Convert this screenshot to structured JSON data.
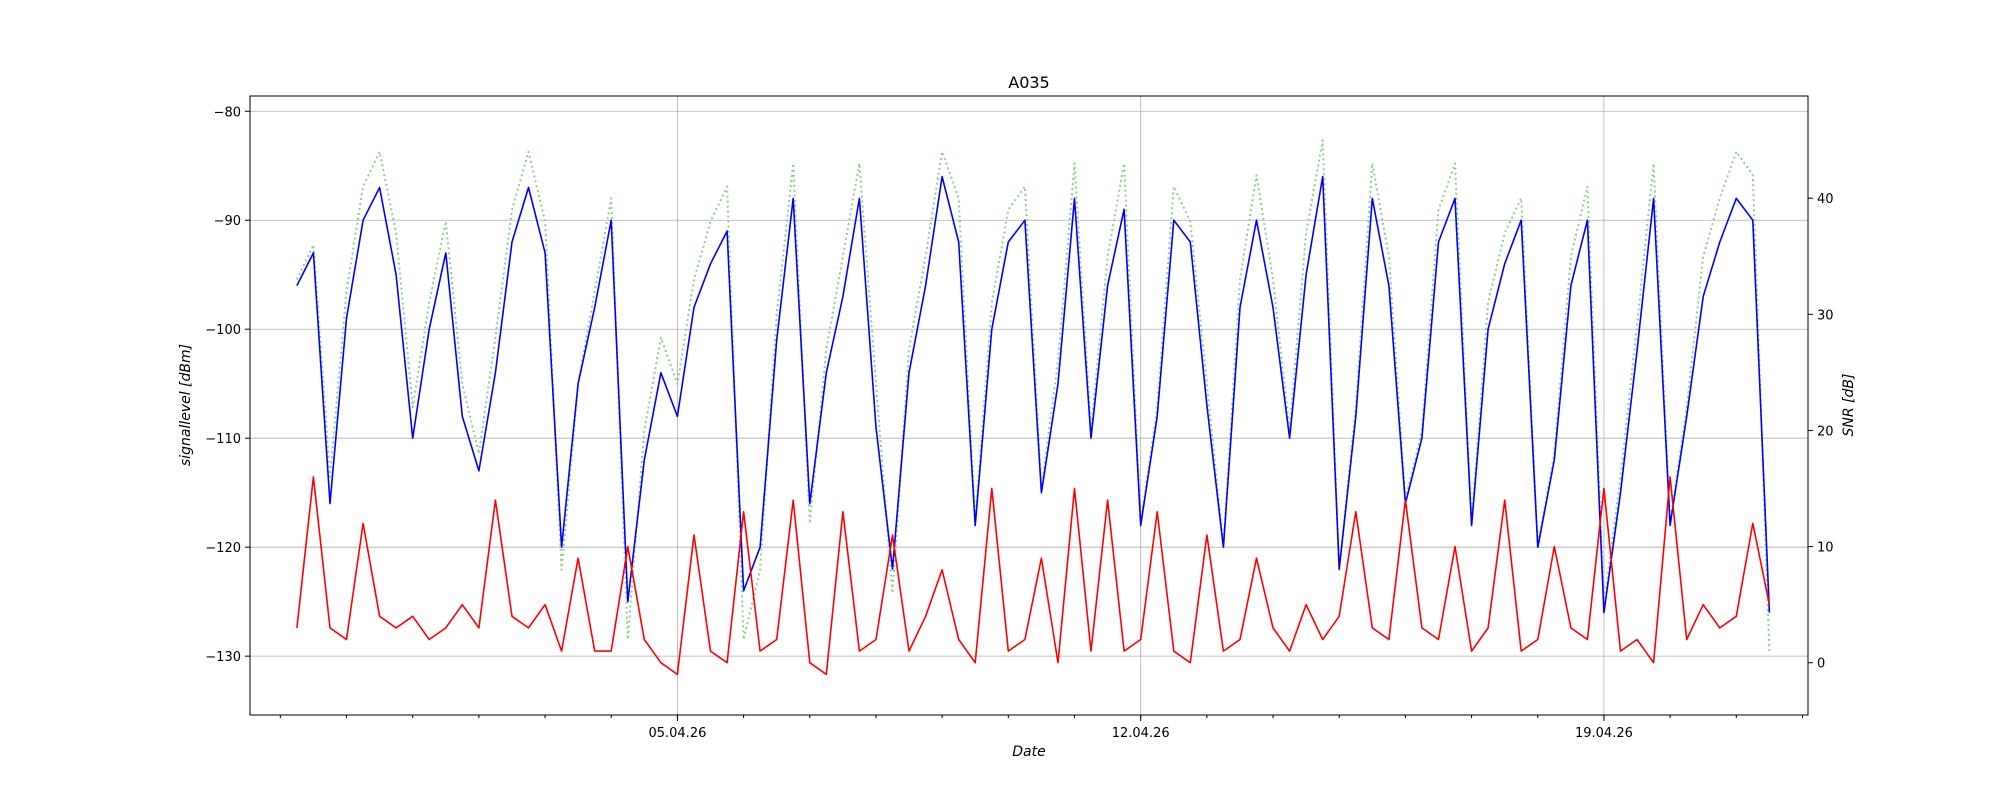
{
  "chart_data": {
    "type": "line",
    "title": "A035",
    "xlabel": "Date",
    "ylabel_left": "signallevel [dBm]",
    "ylabel_right": "SNR [dB]",
    "x_tick_labels": [
      "05.04.26",
      "12.04.26",
      "19.04.26"
    ],
    "xlim": [
      "2026-03-29T13:00",
      "2026-04-22T02:00"
    ],
    "ylim_left": [
      -135.4,
      -78.6
    ],
    "ylim_right": [
      -4.5,
      48.8
    ],
    "yticks_left": [
      -80,
      -90,
      -100,
      -110,
      -120,
      -130
    ],
    "yticks_right": [
      40,
      30,
      20,
      10,
      0
    ],
    "grid": true,
    "series": [
      {
        "axis": "left",
        "color": "#0000ff",
        "style": "solid",
        "t": [
          "2026-03-30T06:00",
          "2026-03-30T12:00",
          "2026-03-30T18:00",
          "2026-03-31T00:00",
          "2026-03-31T06:00",
          "2026-03-31T12:00",
          "2026-03-31T18:00",
          "2026-04-01T00:00",
          "2026-04-01T06:00",
          "2026-04-01T12:00",
          "2026-04-01T18:00",
          "2026-04-02T00:00",
          "2026-04-02T06:00",
          "2026-04-02T12:00",
          "2026-04-02T18:00",
          "2026-04-03T00:00",
          "2026-04-03T06:00",
          "2026-04-03T12:00",
          "2026-04-03T18:00",
          "2026-04-04T00:00",
          "2026-04-04T06:00",
          "2026-04-04T12:00",
          "2026-04-04T18:00",
          "2026-04-05T00:00",
          "2026-04-05T06:00",
          "2026-04-05T12:00",
          "2026-04-05T18:00",
          "2026-04-06T00:00",
          "2026-04-06T06:00",
          "2026-04-06T12:00",
          "2026-04-06T18:00",
          "2026-04-07T00:00",
          "2026-04-07T06:00",
          "2026-04-07T12:00",
          "2026-04-07T18:00",
          "2026-04-08T00:00",
          "2026-04-08T06:00",
          "2026-04-08T12:00",
          "2026-04-08T18:00",
          "2026-04-09T00:00",
          "2026-04-09T06:00",
          "2026-04-09T12:00",
          "2026-04-09T18:00",
          "2026-04-10T00:00",
          "2026-04-10T06:00",
          "2026-04-10T12:00",
          "2026-04-10T18:00",
          "2026-04-11T00:00",
          "2026-04-11T06:00",
          "2026-04-11T12:00",
          "2026-04-11T18:00",
          "2026-04-12T00:00",
          "2026-04-12T06:00",
          "2026-04-12T12:00",
          "2026-04-12T18:00",
          "2026-04-13T00:00",
          "2026-04-13T06:00",
          "2026-04-13T12:00",
          "2026-04-13T18:00",
          "2026-04-14T00:00",
          "2026-04-14T06:00",
          "2026-04-14T12:00",
          "2026-04-14T18:00",
          "2026-04-15T00:00",
          "2026-04-15T06:00",
          "2026-04-15T12:00",
          "2026-04-15T18:00",
          "2026-04-16T00:00",
          "2026-04-16T06:00",
          "2026-04-16T12:00",
          "2026-04-16T18:00",
          "2026-04-17T00:00",
          "2026-04-17T06:00",
          "2026-04-17T12:00",
          "2026-04-17T18:00",
          "2026-04-18T00:00",
          "2026-04-18T06:00",
          "2026-04-18T12:00",
          "2026-04-18T18:00",
          "2026-04-19T00:00",
          "2026-04-19T06:00",
          "2026-04-19T12:00",
          "2026-04-19T18:00",
          "2026-04-20T00:00",
          "2026-04-20T06:00",
          "2026-04-20T12:00",
          "2026-04-20T18:00",
          "2026-04-21T00:00",
          "2026-04-21T06:00",
          "2026-04-21T12:00"
        ],
        "values": [
          -96,
          -93,
          -116,
          -99,
          -90,
          -87,
          -95,
          -110,
          -100,
          -93,
          -108,
          -113,
          -104,
          -92,
          -87,
          -93,
          -120,
          -105,
          -98,
          -90,
          -125,
          -112,
          -104,
          -108,
          -98,
          -94,
          -91,
          -124,
          -120,
          -101,
          -88,
          -116,
          -104,
          -97,
          -88,
          -109,
          -122,
          -104,
          -96,
          -86,
          -92,
          -118,
          -100,
          -92,
          -90,
          -115,
          -105,
          -88,
          -110,
          -96,
          -89,
          -118,
          -108,
          -90,
          -92,
          -107,
          -120,
          -98,
          -90,
          -98,
          -110,
          -95,
          -86,
          -122,
          -108,
          -88,
          -96,
          -116,
          -110,
          -92,
          -88,
          -118,
          -100,
          -94,
          -90,
          -120,
          -112,
          -96,
          -90,
          -126,
          -115,
          -102,
          -88,
          -118,
          -108,
          -97,
          -92,
          -88,
          -90,
          -126
        ]
      },
      {
        "axis": "right",
        "color": "#ff0000",
        "style": "solid",
        "t": [
          "2026-03-30T06:00",
          "2026-03-30T12:00",
          "2026-03-30T18:00",
          "2026-03-31T00:00",
          "2026-03-31T06:00",
          "2026-03-31T12:00",
          "2026-03-31T18:00",
          "2026-04-01T00:00",
          "2026-04-01T06:00",
          "2026-04-01T12:00",
          "2026-04-01T18:00",
          "2026-04-02T00:00",
          "2026-04-02T06:00",
          "2026-04-02T12:00",
          "2026-04-02T18:00",
          "2026-04-03T00:00",
          "2026-04-03T06:00",
          "2026-04-03T12:00",
          "2026-04-03T18:00",
          "2026-04-04T00:00",
          "2026-04-04T06:00",
          "2026-04-04T12:00",
          "2026-04-04T18:00",
          "2026-04-05T00:00",
          "2026-04-05T06:00",
          "2026-04-05T12:00",
          "2026-04-05T18:00",
          "2026-04-06T00:00",
          "2026-04-06T06:00",
          "2026-04-06T12:00",
          "2026-04-06T18:00",
          "2026-04-07T00:00",
          "2026-04-07T06:00",
          "2026-04-07T12:00",
          "2026-04-07T18:00",
          "2026-04-08T00:00",
          "2026-04-08T06:00",
          "2026-04-08T12:00",
          "2026-04-08T18:00",
          "2026-04-09T00:00",
          "2026-04-09T06:00",
          "2026-04-09T12:00",
          "2026-04-09T18:00",
          "2026-04-10T00:00",
          "2026-04-10T06:00",
          "2026-04-10T12:00",
          "2026-04-10T18:00",
          "2026-04-11T00:00",
          "2026-04-11T06:00",
          "2026-04-11T12:00",
          "2026-04-11T18:00",
          "2026-04-12T00:00",
          "2026-04-12T06:00",
          "2026-04-12T12:00",
          "2026-04-12T18:00",
          "2026-04-13T00:00",
          "2026-04-13T06:00",
          "2026-04-13T12:00",
          "2026-04-13T18:00",
          "2026-04-14T00:00",
          "2026-04-14T06:00",
          "2026-04-14T12:00",
          "2026-04-14T18:00",
          "2026-04-15T00:00",
          "2026-04-15T06:00",
          "2026-04-15T12:00",
          "2026-04-15T18:00",
          "2026-04-16T00:00",
          "2026-04-16T06:00",
          "2026-04-16T12:00",
          "2026-04-16T18:00",
          "2026-04-17T00:00",
          "2026-04-17T06:00",
          "2026-04-17T12:00",
          "2026-04-17T18:00",
          "2026-04-18T00:00",
          "2026-04-18T06:00",
          "2026-04-18T12:00",
          "2026-04-18T18:00",
          "2026-04-19T00:00",
          "2026-04-19T06:00",
          "2026-04-19T12:00",
          "2026-04-19T18:00",
          "2026-04-20T00:00",
          "2026-04-20T06:00",
          "2026-04-20T12:00",
          "2026-04-20T18:00",
          "2026-04-21T00:00",
          "2026-04-21T06:00",
          "2026-04-21T12:00"
        ],
        "values": [
          3,
          16,
          3,
          2,
          12,
          4,
          3,
          4,
          2,
          3,
          5,
          3,
          14,
          4,
          3,
          5,
          1,
          9,
          1,
          1,
          10,
          2,
          0,
          -1,
          11,
          1,
          0,
          13,
          1,
          2,
          14,
          0,
          -1,
          13,
          1,
          2,
          11,
          1,
          4,
          8,
          2,
          0,
          15,
          1,
          2,
          9,
          0,
          15,
          1,
          14,
          1,
          2,
          13,
          1,
          0,
          11,
          1,
          2,
          9,
          3,
          1,
          5,
          2,
          4,
          13,
          3,
          2,
          14,
          3,
          2,
          10,
          1,
          3,
          14,
          1,
          2,
          10,
          3,
          2,
          15,
          1,
          2,
          0,
          16,
          2,
          5,
          3,
          4,
          12,
          5
        ]
      },
      {
        "axis": "right",
        "color": "#90d090",
        "style": "dotted",
        "t": [
          "2026-03-30T06:00",
          "2026-03-30T12:00",
          "2026-03-30T18:00",
          "2026-03-31T00:00",
          "2026-03-31T06:00",
          "2026-03-31T12:00",
          "2026-03-31T18:00",
          "2026-04-01T00:00",
          "2026-04-01T06:00",
          "2026-04-01T12:00",
          "2026-04-01T18:00",
          "2026-04-02T00:00",
          "2026-04-02T06:00",
          "2026-04-02T12:00",
          "2026-04-02T18:00",
          "2026-04-03T00:00",
          "2026-04-03T06:00",
          "2026-04-03T12:00",
          "2026-04-03T18:00",
          "2026-04-04T00:00",
          "2026-04-04T06:00",
          "2026-04-04T12:00",
          "2026-04-04T18:00",
          "2026-04-05T00:00",
          "2026-04-05T06:00",
          "2026-04-05T12:00",
          "2026-04-05T18:00",
          "2026-04-06T00:00",
          "2026-04-06T06:00",
          "2026-04-06T12:00",
          "2026-04-06T18:00",
          "2026-04-07T00:00",
          "2026-04-07T06:00",
          "2026-04-07T12:00",
          "2026-04-07T18:00",
          "2026-04-08T00:00",
          "2026-04-08T06:00",
          "2026-04-08T12:00",
          "2026-04-08T18:00",
          "2026-04-09T00:00",
          "2026-04-09T06:00",
          "2026-04-09T12:00",
          "2026-04-09T18:00",
          "2026-04-10T00:00",
          "2026-04-10T06:00",
          "2026-04-10T12:00",
          "2026-04-10T18:00",
          "2026-04-11T00:00",
          "2026-04-11T06:00",
          "2026-04-11T12:00",
          "2026-04-11T18:00",
          "2026-04-12T00:00",
          "2026-04-12T06:00",
          "2026-04-12T12:00",
          "2026-04-12T18:00",
          "2026-04-13T00:00",
          "2026-04-13T06:00",
          "2026-04-13T12:00",
          "2026-04-13T18:00",
          "2026-04-14T00:00",
          "2026-04-14T06:00",
          "2026-04-14T12:00",
          "2026-04-14T18:00",
          "2026-04-15T00:00",
          "2026-04-15T06:00",
          "2026-04-15T12:00",
          "2026-04-15T18:00",
          "2026-04-16T00:00",
          "2026-04-16T06:00",
          "2026-04-16T12:00",
          "2026-04-16T18:00",
          "2026-04-17T00:00",
          "2026-04-17T06:00",
          "2026-04-17T12:00",
          "2026-04-17T18:00",
          "2026-04-18T00:00",
          "2026-04-18T06:00",
          "2026-04-18T12:00",
          "2026-04-18T18:00",
          "2026-04-19T00:00",
          "2026-04-19T06:00",
          "2026-04-19T12:00",
          "2026-04-19T18:00",
          "2026-04-20T00:00",
          "2026-04-20T06:00",
          "2026-04-20T12:00",
          "2026-04-20T18:00",
          "2026-04-21T00:00",
          "2026-04-21T06:00",
          "2026-04-21T12:00"
        ],
        "values": [
          33,
          36,
          16,
          32,
          41,
          44,
          37,
          22,
          31,
          38,
          24,
          18,
          28,
          39,
          44,
          38,
          8,
          24,
          32,
          40,
          2,
          20,
          28,
          24,
          33,
          38,
          41,
          2,
          8,
          30,
          43,
          12,
          27,
          35,
          43,
          24,
          6,
          27,
          35,
          44,
          40,
          12,
          31,
          39,
          41,
          15,
          26,
          43,
          20,
          35,
          43,
          12,
          22,
          41,
          38,
          24,
          10,
          33,
          42,
          33,
          20,
          37,
          45,
          8,
          22,
          43,
          35,
          14,
          20,
          39,
          43,
          12,
          31,
          37,
          40,
          10,
          18,
          35,
          41,
          5,
          16,
          29,
          43,
          12,
          22,
          35,
          40,
          44,
          42,
          1
        ]
      }
    ]
  }
}
